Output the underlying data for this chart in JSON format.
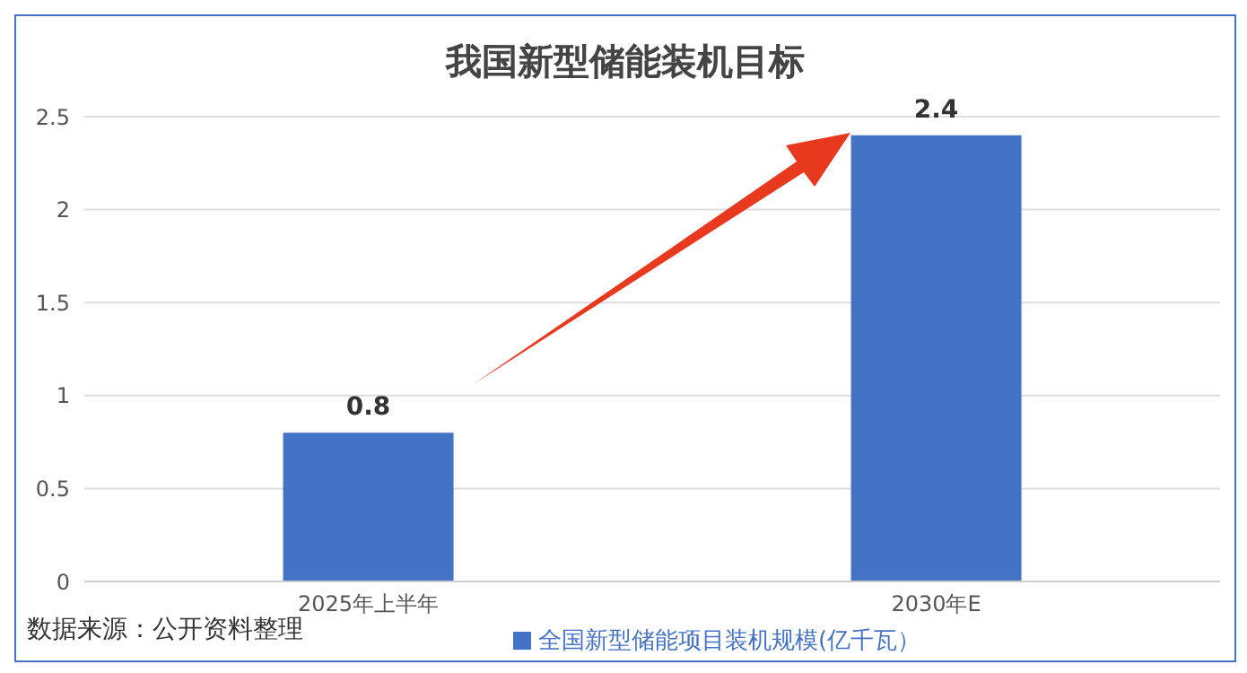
{
  "chart_data": {
    "type": "bar",
    "title": "我国新型储能装机目标",
    "categories": [
      "2025年上半年",
      "2030年E"
    ],
    "series": [
      {
        "name": "全国新型储能项目装机规模(亿千瓦）",
        "color": "#4472c4",
        "values": [
          0.8,
          2.4
        ]
      }
    ],
    "ylim": [
      0,
      2.5
    ],
    "yticks": [
      0,
      0.5,
      1,
      1.5,
      2,
      2.5
    ],
    "grid": "y",
    "legend": "bottom",
    "data_labels": true,
    "annotations": [
      "数据来源：公开资料整理"
    ]
  }
}
